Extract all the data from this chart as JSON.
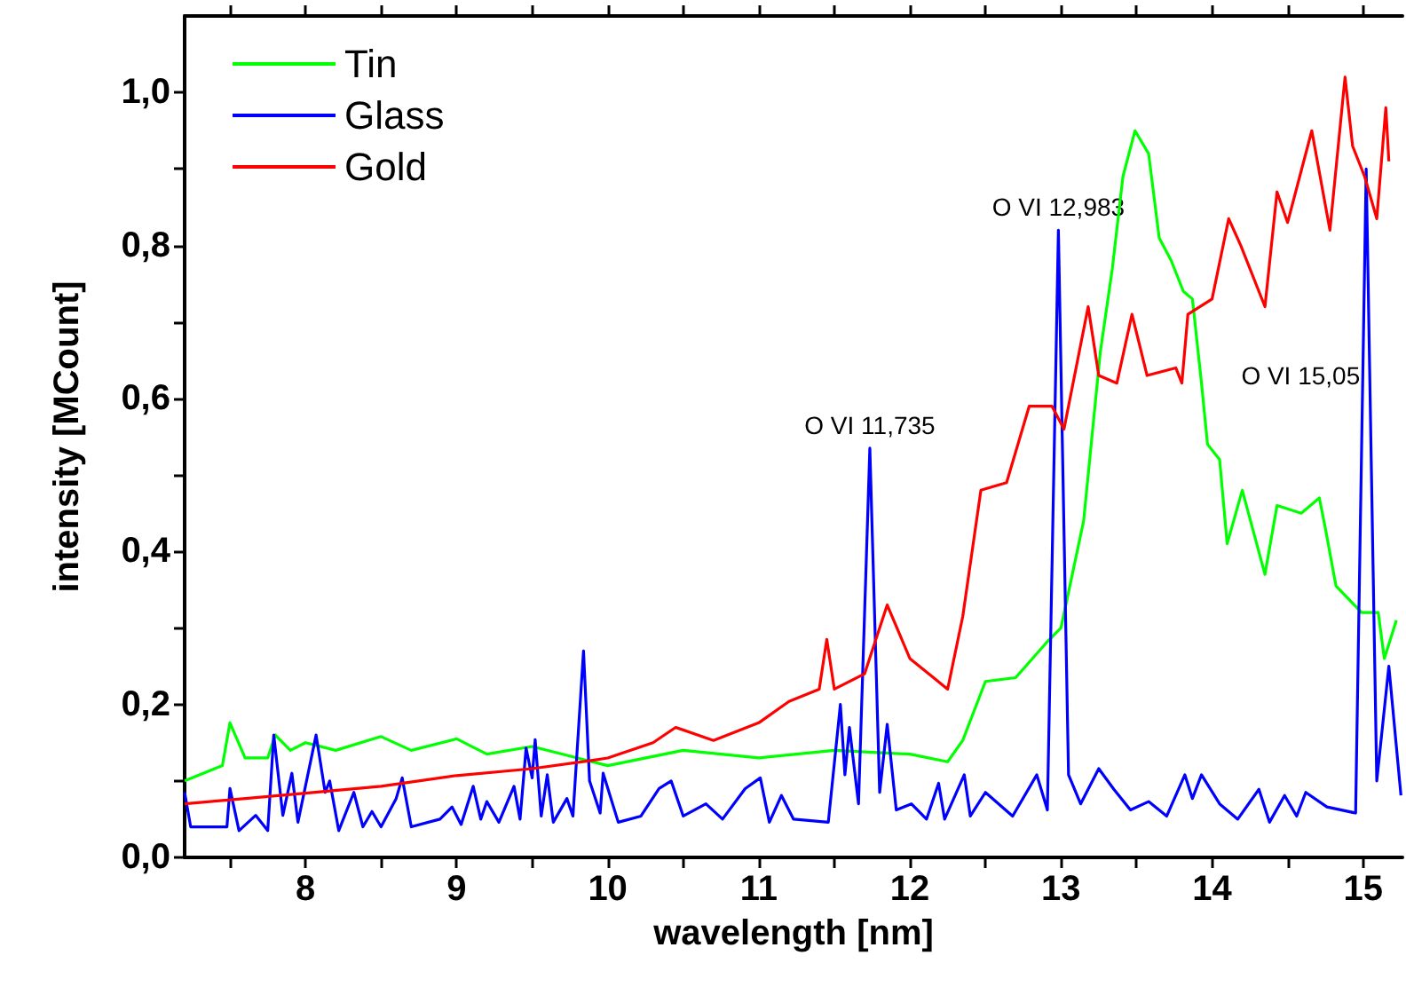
{
  "chart_data": {
    "type": "line",
    "xlabel": "wavelength [nm]",
    "ylabel": "intensity [MCount]",
    "xlim": [
      7.2,
      15.26
    ],
    "ylim": [
      0,
      1.1
    ],
    "xticks": [
      {
        "value": 7.5,
        "label": null
      },
      8,
      {
        "value": 8.5,
        "label": null
      },
      9,
      {
        "value": 9.5,
        "label": null
      },
      10,
      {
        "value": 10.5,
        "label": null
      },
      11,
      {
        "value": 11.5,
        "label": null
      },
      12,
      {
        "value": 12.5,
        "label": null
      },
      13,
      {
        "value": 13.5,
        "label": null
      },
      14,
      {
        "value": 14.5,
        "label": null
      },
      15
    ],
    "yticks": [
      {
        "value": 0,
        "label": "0,0"
      },
      {
        "value": 0.1,
        "label": null
      },
      {
        "value": 0.2,
        "label": "0,2"
      },
      {
        "value": 0.3,
        "label": null
      },
      {
        "value": 0.4,
        "label": "0,4"
      },
      {
        "value": 0.5,
        "label": null
      },
      {
        "value": 0.6,
        "label": "0,6"
      },
      {
        "value": 0.7,
        "label": null
      },
      {
        "value": 0.8,
        "label": "0,8"
      },
      {
        "value": 0.9,
        "label": null
      },
      {
        "value": 1.0,
        "label": "1,0"
      }
    ],
    "grid": false,
    "legend": "top left",
    "marker": "none",
    "line_style": "solid",
    "series": [
      {
        "name": "Tin",
        "color": "#00ff00",
        "x": [
          7.2,
          7.45,
          7.5,
          7.6,
          7.75,
          7.8,
          7.9,
          8.0,
          8.2,
          8.5,
          8.7,
          9.0,
          9.2,
          9.5,
          9.8,
          10.0,
          10.5,
          11.0,
          11.5,
          12.0,
          12.25,
          12.35,
          12.5,
          12.7,
          12.9,
          13.0,
          13.15,
          13.26,
          13.34,
          13.41,
          13.49,
          13.58,
          13.65,
          13.73,
          13.81,
          13.87,
          13.93,
          13.97,
          14.05,
          14.1,
          14.2,
          14.35,
          14.43,
          14.59,
          14.71,
          14.75,
          14.82,
          14.99,
          15.1,
          15.14,
          15.22
        ],
        "values": [
          0.1,
          0.12,
          0.176,
          0.13,
          0.13,
          0.16,
          0.14,
          0.15,
          0.14,
          0.158,
          0.14,
          0.155,
          0.135,
          0.145,
          0.13,
          0.12,
          0.14,
          0.13,
          0.14,
          0.135,
          0.125,
          0.153,
          0.23,
          0.235,
          0.28,
          0.3,
          0.44,
          0.66,
          0.77,
          0.89,
          0.95,
          0.92,
          0.81,
          0.78,
          0.74,
          0.73,
          0.62,
          0.54,
          0.52,
          0.41,
          0.48,
          0.37,
          0.46,
          0.45,
          0.47,
          0.43,
          0.355,
          0.32,
          0.32,
          0.26,
          0.31
        ]
      },
      {
        "name": "Glass",
        "color": "#0000ff",
        "x": [
          7.2,
          7.24,
          7.48,
          7.5,
          7.56,
          7.67,
          7.75,
          7.79,
          7.85,
          7.91,
          7.95,
          8.07,
          8.13,
          8.16,
          8.22,
          8.32,
          8.38,
          8.44,
          8.5,
          8.6,
          8.64,
          8.7,
          8.89,
          8.97,
          9.03,
          9.11,
          9.16,
          9.2,
          9.28,
          9.38,
          9.42,
          9.46,
          9.5,
          9.52,
          9.56,
          9.6,
          9.64,
          9.73,
          9.77,
          9.84,
          9.88,
          9.95,
          9.97,
          10.07,
          10.22,
          10.34,
          10.42,
          10.5,
          10.65,
          10.76,
          10.91,
          11.01,
          11.07,
          11.15,
          11.23,
          11.46,
          11.54,
          11.57,
          11.6,
          11.66,
          11.735,
          11.8,
          11.85,
          11.91,
          12.01,
          12.11,
          12.19,
          12.23,
          12.36,
          12.4,
          12.5,
          12.68,
          12.84,
          12.91,
          12.983,
          13.05,
          13.13,
          13.25,
          13.35,
          13.46,
          13.58,
          13.7,
          13.82,
          13.87,
          13.93,
          14.05,
          14.17,
          14.31,
          14.38,
          14.48,
          14.56,
          14.62,
          14.76,
          14.95,
          15.02,
          15.09,
          15.17,
          15.25
        ],
        "values": [
          0.085,
          0.04,
          0.04,
          0.09,
          0.035,
          0.055,
          0.035,
          0.16,
          0.055,
          0.11,
          0.046,
          0.16,
          0.085,
          0.1,
          0.035,
          0.085,
          0.04,
          0.06,
          0.04,
          0.077,
          0.104,
          0.04,
          0.05,
          0.066,
          0.043,
          0.093,
          0.05,
          0.073,
          0.046,
          0.093,
          0.05,
          0.143,
          0.104,
          0.154,
          0.054,
          0.108,
          0.046,
          0.077,
          0.054,
          0.27,
          0.1,
          0.058,
          0.11,
          0.046,
          0.054,
          0.09,
          0.1,
          0.054,
          0.07,
          0.05,
          0.09,
          0.104,
          0.046,
          0.081,
          0.05,
          0.046,
          0.2,
          0.108,
          0.17,
          0.07,
          0.535,
          0.085,
          0.174,
          0.062,
          0.07,
          0.05,
          0.097,
          0.05,
          0.108,
          0.054,
          0.085,
          0.054,
          0.108,
          0.062,
          0.82,
          0.108,
          0.07,
          0.116,
          0.089,
          0.062,
          0.073,
          0.054,
          0.108,
          0.077,
          0.108,
          0.07,
          0.05,
          0.089,
          0.046,
          0.081,
          0.054,
          0.085,
          0.066,
          0.058,
          0.9,
          0.1,
          0.25,
          0.081
        ]
      },
      {
        "name": "Gold",
        "color": "#ff0000",
        "x": [
          7.2,
          8.0,
          8.5,
          9.0,
          9.5,
          9.9,
          10.0,
          10.3,
          10.45,
          10.7,
          11.0,
          11.2,
          11.4,
          11.45,
          11.5,
          11.7,
          11.85,
          12.0,
          12.25,
          12.35,
          12.47,
          12.64,
          12.79,
          12.94,
          13.02,
          13.18,
          13.25,
          13.37,
          13.47,
          13.57,
          13.76,
          13.8,
          13.84,
          14.0,
          14.11,
          14.19,
          14.35,
          14.43,
          14.5,
          14.66,
          14.78,
          14.88,
          14.93,
          15.01,
          15.09,
          15.15,
          15.17
        ],
        "values": [
          0.07,
          0.084,
          0.093,
          0.107,
          0.116,
          0.127,
          0.13,
          0.15,
          0.17,
          0.153,
          0.176,
          0.204,
          0.22,
          0.285,
          0.22,
          0.24,
          0.33,
          0.26,
          0.22,
          0.315,
          0.48,
          0.49,
          0.59,
          0.59,
          0.56,
          0.72,
          0.63,
          0.62,
          0.71,
          0.63,
          0.64,
          0.62,
          0.71,
          0.73,
          0.835,
          0.8,
          0.72,
          0.87,
          0.83,
          0.95,
          0.82,
          1.02,
          0.93,
          0.89,
          0.835,
          0.98,
          0.91
        ]
      }
    ],
    "annotations": [
      {
        "text": "O VI 11,735",
        "x": 11.735,
        "y": 0.535
      },
      {
        "text": "O VI 12,983",
        "x": 12.983,
        "y": 0.82
      },
      {
        "text": "O VI 15,05",
        "x": 15.05,
        "y": 0.6
      }
    ]
  }
}
